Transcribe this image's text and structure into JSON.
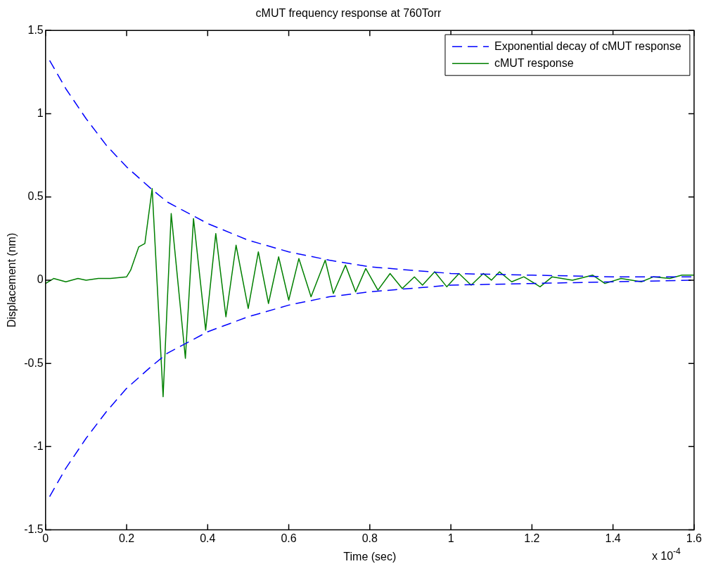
{
  "chart_data": {
    "type": "line",
    "title": "cMUT frequency response at 760Torr",
    "xlabel": "Time (sec)",
    "ylabel": "Displacement (nm)",
    "annotations": [
      "x 10$^{-4}$"
    ],
    "xlim": [
      0,
      1.6
    ],
    "xticks": [
      0,
      0.2,
      0.4,
      0.6,
      0.8,
      1,
      1.2,
      1.4,
      1.6
    ],
    "ylim": [
      -1.5,
      1.5
    ],
    "yticks": [
      -1.5,
      -1,
      -0.5,
      0,
      0.5,
      1,
      1.5
    ],
    "grid": false,
    "legend": "top right",
    "marker": "none",
    "series": [
      {
        "name": "Exponential decay of cMUT response",
        "color": "#0000ff",
        "line_style": "dashed",
        "x": [
          0.01,
          0.05,
          0.1,
          0.15,
          0.2,
          0.26,
          0.3,
          0.4,
          0.5,
          0.6,
          0.7,
          0.8,
          0.9,
          1.0,
          1.2,
          1.4,
          1.6
        ],
        "values": [
          1.32,
          1.15,
          0.97,
          0.81,
          0.68,
          0.55,
          0.47,
          0.34,
          0.24,
          0.17,
          0.12,
          0.08,
          0.06,
          0.04,
          0.03,
          0.02,
          0.02
        ]
      },
      {
        "color": "#0000ff",
        "line_style": "dashed",
        "x": [
          0.01,
          0.05,
          0.1,
          0.15,
          0.2,
          0.26,
          0.3,
          0.4,
          0.5,
          0.6,
          0.7,
          0.8,
          0.9,
          1.0,
          1.2,
          1.4,
          1.6
        ],
        "values": [
          -1.3,
          -1.13,
          -0.95,
          -0.79,
          -0.65,
          -0.52,
          -0.44,
          -0.31,
          -0.22,
          -0.15,
          -0.1,
          -0.07,
          -0.05,
          -0.03,
          -0.02,
          -0.01,
          0
        ]
      },
      {
        "name": "cMUT response",
        "color": "#008000",
        "line_style": "solid",
        "x": [
          0,
          0.02,
          0.05,
          0.08,
          0.1,
          0.13,
          0.16,
          0.2,
          0.21,
          0.23,
          0.245,
          0.263,
          0.29,
          0.31,
          0.345,
          0.365,
          0.395,
          0.42,
          0.445,
          0.47,
          0.5,
          0.525,
          0.55,
          0.575,
          0.6,
          0.625,
          0.655,
          0.69,
          0.71,
          0.74,
          0.765,
          0.79,
          0.82,
          0.85,
          0.88,
          0.91,
          0.93,
          0.96,
          0.99,
          1.02,
          1.05,
          1.08,
          1.1,
          1.12,
          1.15,
          1.18,
          1.22,
          1.25,
          1.3,
          1.35,
          1.38,
          1.42,
          1.47,
          1.5,
          1.54,
          1.57,
          1.6
        ],
        "values": [
          -0.02,
          0.01,
          -0.01,
          0.01,
          0,
          0.01,
          0.01,
          0.02,
          0.06,
          0.2,
          0.22,
          0.55,
          -0.7,
          0.4,
          -0.47,
          0.37,
          -0.3,
          0.28,
          -0.22,
          0.21,
          -0.17,
          0.17,
          -0.14,
          0.14,
          -0.12,
          0.13,
          -0.1,
          0.12,
          -0.08,
          0.09,
          -0.07,
          0.07,
          -0.06,
          0.04,
          -0.05,
          0.02,
          -0.03,
          0.05,
          -0.04,
          0.04,
          -0.03,
          0.04,
          0,
          0.05,
          -0.01,
          0.02,
          -0.04,
          0.02,
          0,
          0.03,
          -0.02,
          0.01,
          -0.01,
          0.02,
          0.01,
          0.03,
          0.03
        ]
      }
    ]
  }
}
